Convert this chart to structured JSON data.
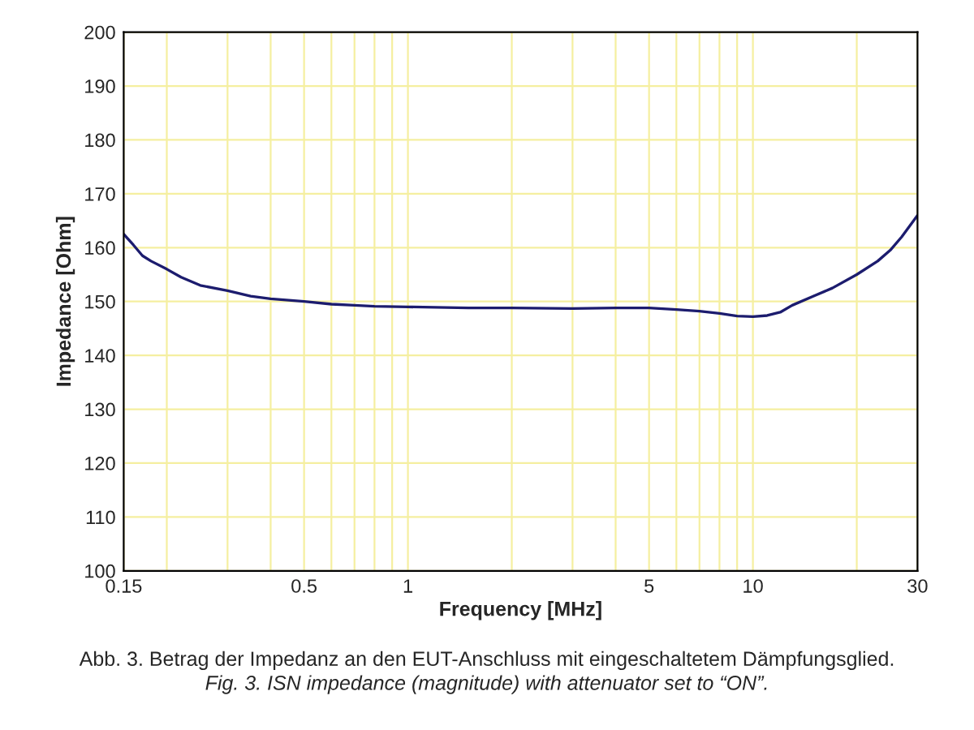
{
  "chart_data": {
    "type": "line",
    "xlabel": "Frequency [MHz]",
    "ylabel": "Impedance [Ohm]",
    "x": [
      0.15,
      0.16,
      0.17,
      0.18,
      0.2,
      0.22,
      0.25,
      0.3,
      0.35,
      0.4,
      0.5,
      0.6,
      0.7,
      0.8,
      1,
      1.5,
      2,
      3,
      4,
      5,
      6,
      7,
      8,
      9,
      10,
      11,
      12,
      13,
      15,
      17,
      20,
      23,
      25,
      27,
      30
    ],
    "series": [
      {
        "color": "#1c1c6e",
        "values": [
          162.5,
          160.5,
          158.5,
          157.5,
          156,
          154.5,
          153,
          152,
          151,
          150.5,
          150,
          149.5,
          149.3,
          149.1,
          149,
          148.8,
          148.8,
          148.7,
          148.8,
          148.8,
          148.5,
          148.2,
          147.8,
          147.3,
          147.2,
          147.4,
          148,
          149.3,
          151,
          152.5,
          155,
          157.5,
          159.5,
          162,
          166
        ]
      }
    ],
    "log": "x",
    "xlim": [
      0.15,
      30
    ],
    "ylim": [
      100,
      200
    ],
    "xticks": [
      0.15,
      {
        "value": 0.2,
        "label": null
      },
      {
        "value": 0.3,
        "label": null
      },
      {
        "value": 0.4,
        "label": null
      },
      0.5,
      {
        "value": 0.6,
        "label": null
      },
      {
        "value": 0.7,
        "label": null
      },
      {
        "value": 0.8,
        "label": null
      },
      {
        "value": 0.9,
        "label": null
      },
      1,
      {
        "value": 2,
        "label": null
      },
      {
        "value": 3,
        "label": null
      },
      {
        "value": 4,
        "label": null
      },
      5,
      {
        "value": 6,
        "label": null
      },
      {
        "value": 7,
        "label": null
      },
      {
        "value": 8,
        "label": null
      },
      {
        "value": 9,
        "label": null
      },
      10,
      {
        "value": 20,
        "label": null
      },
      30
    ],
    "yticks": [
      100,
      110,
      120,
      130,
      140,
      150,
      160,
      170,
      180,
      190,
      200
    ],
    "grid": true,
    "line_style": "solid",
    "marker": "none",
    "annotations": [
      "Abb. 3. Betrag der Impedanz an den EUT-Anschluss mit eingeschaltetem Dämpfungsglied.",
      "Fig. 3. ISN impedance (magnitude) with attenuator set to “ON”."
    ]
  }
}
